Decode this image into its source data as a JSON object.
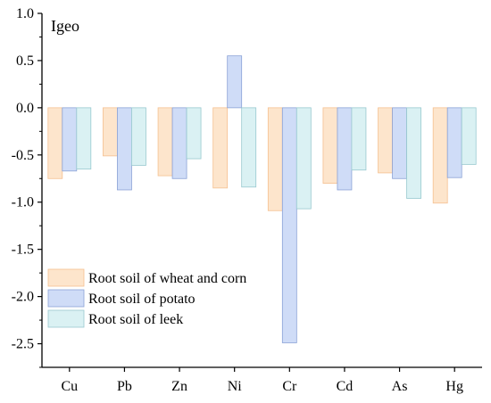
{
  "chart_data": {
    "type": "bar",
    "title": "",
    "ylabel_inside": "Igeo",
    "xlabel": "",
    "categories": [
      "Cu",
      "Pb",
      "Zn",
      "Ni",
      "Cr",
      "Cd",
      "As",
      "Hg"
    ],
    "ylim": [
      -2.75,
      1.0
    ],
    "yticks": [
      1.0,
      0.5,
      0.0,
      -0.5,
      -1.0,
      -1.5,
      -2.0,
      -2.5
    ],
    "ytick_labels": [
      "1.0",
      "0.5",
      "0.0",
      "-0.5",
      "-1.0",
      "-1.5",
      "-2.0",
      "-2.5"
    ],
    "grid": false,
    "legend_position": "bottom-left",
    "series": [
      {
        "name": "Root soil of wheat and corn",
        "color": "#fde5cc",
        "stroke": "#f5c090",
        "values": [
          -0.75,
          -0.51,
          -0.72,
          -0.85,
          -1.09,
          -0.8,
          -0.69,
          -1.01
        ]
      },
      {
        "name": "Root soil of potato",
        "color": "#cfdcf7",
        "stroke": "#8aa2d6",
        "values": [
          -0.67,
          -0.87,
          -0.75,
          0.55,
          -2.49,
          -0.87,
          -0.75,
          -0.74
        ]
      },
      {
        "name": "Root soil of leek",
        "color": "#daf1f3",
        "stroke": "#98c9cf",
        "values": [
          -0.65,
          -0.61,
          -0.54,
          -0.84,
          -1.07,
          -0.66,
          -0.96,
          -0.6
        ]
      }
    ]
  }
}
